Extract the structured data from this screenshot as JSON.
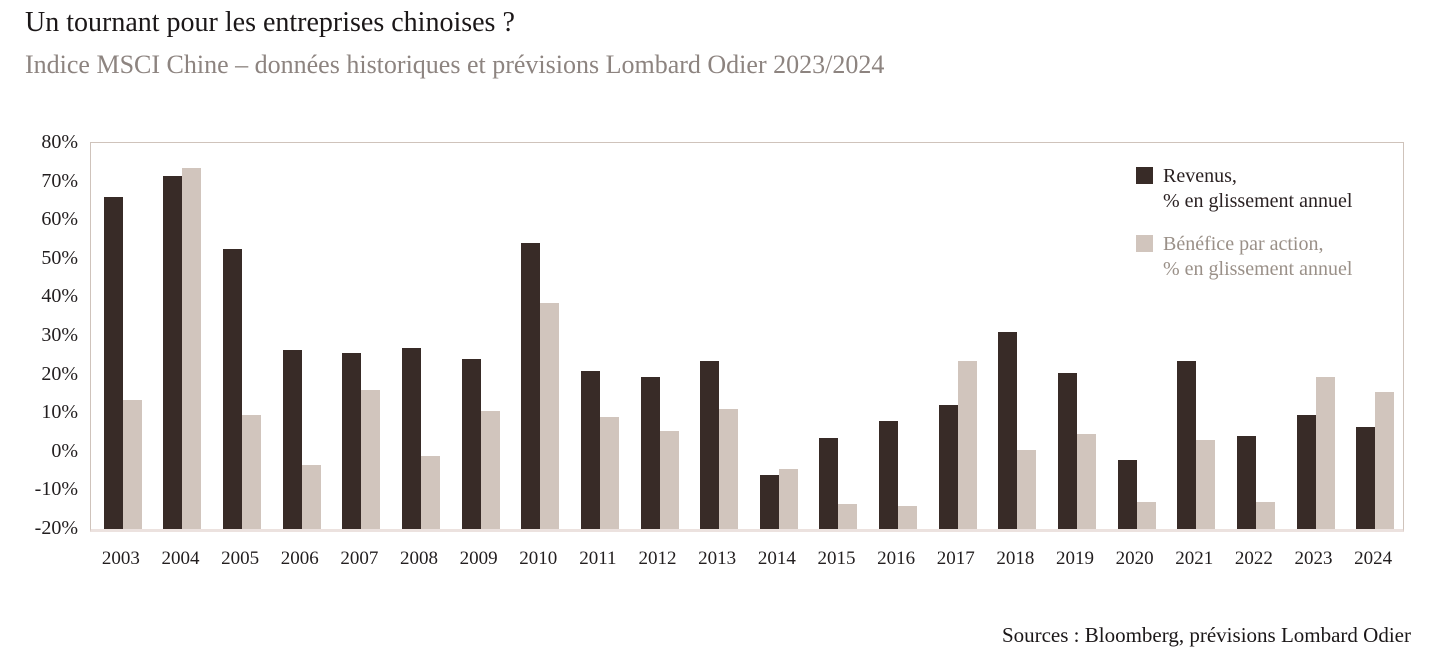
{
  "header": {
    "title": "Un tournant pour les entreprises chinoises ?",
    "subtitle": "Indice MSCI Chine – données historiques et prévisions Lombard Odier 2023/2024"
  },
  "legend": {
    "items": [
      {
        "line1": "Revenus,",
        "line2": "% en glissement annuel",
        "swatch_color": "#382b27",
        "text_color": "#2a2122"
      },
      {
        "line1": "Bénéfice par action,",
        "line2": "% en glissement annuel",
        "swatch_color": "#d1c5bd",
        "text_color": "#9a9088"
      }
    ]
  },
  "footer": {
    "sources": "Sources : Bloomberg, prévisions Lombard Odier"
  },
  "chart_data": {
    "type": "bar",
    "title": "Un tournant pour les entreprises chinoises ?",
    "subtitle": "Indice MSCI Chine – données historiques et prévisions Lombard Odier 2023/2024",
    "categories": [
      "2003",
      "2004",
      "2005",
      "2006",
      "2007",
      "2008",
      "2009",
      "2010",
      "2011",
      "2012",
      "2013",
      "2014",
      "2015",
      "2016",
      "2017",
      "2018",
      "2019",
      "2020",
      "2021",
      "2022",
      "2023",
      "2024"
    ],
    "series": [
      {
        "name": "Revenus, % en glissement annuel",
        "color": "#382b27",
        "values": [
          66,
          71.5,
          52.5,
          26.5,
          25.5,
          27,
          24,
          54,
          21,
          19.5,
          23.5,
          -6,
          3.5,
          8,
          12,
          31,
          20.5,
          -2,
          23.5,
          4,
          9.5,
          6.5
        ]
      },
      {
        "name": "Bénéfice par action, % en glissement annuel",
        "color": "#d1c5bd",
        "values": [
          13.5,
          73.5,
          9.5,
          -3.5,
          16,
          -1,
          10.5,
          38.5,
          9,
          5.5,
          11,
          -4.5,
          -13.5,
          -14,
          23.5,
          0.5,
          4.5,
          -13,
          3,
          -13,
          19.5,
          15.5
        ]
      }
    ],
    "xlabel": "",
    "ylabel": "",
    "ylim": [
      -20,
      80
    ],
    "ytick_labels": [
      "80%",
      "70%",
      "60%",
      "50%",
      "40%",
      "30%",
      "20%",
      "10%",
      "0%",
      "-10%",
      "-20%"
    ],
    "bar_baseline": -20,
    "grid": false,
    "legend_position": "top-right",
    "axis_label_color": "#221e1f",
    "plot_border_color": "#cfc3bb"
  }
}
